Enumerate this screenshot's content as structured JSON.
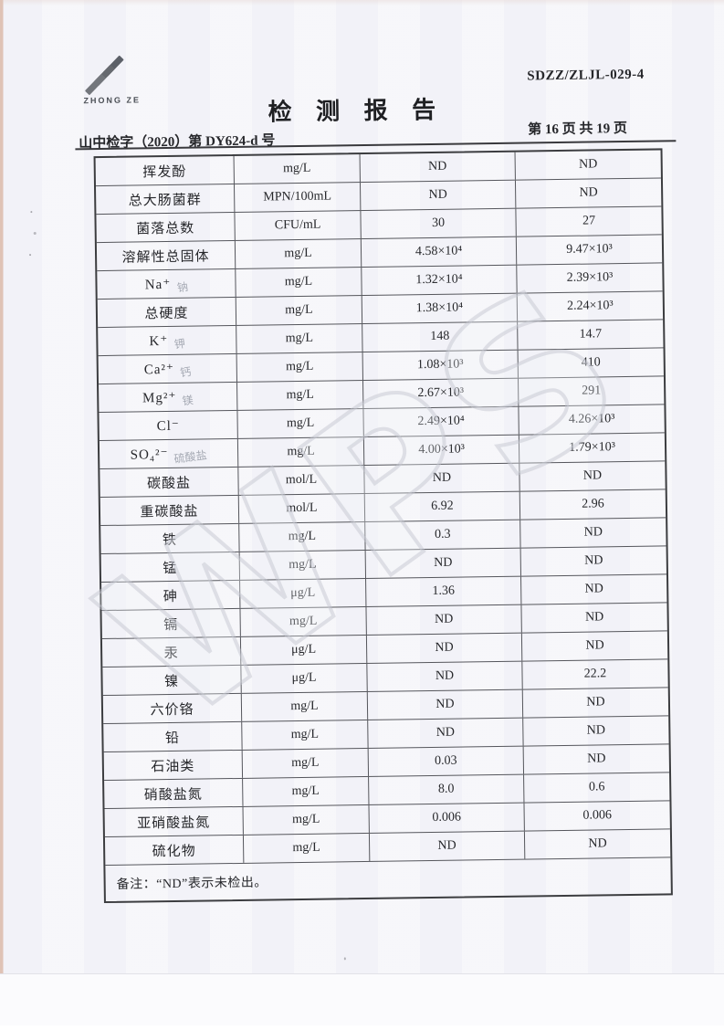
{
  "document": {
    "form_code": "SDZZ/ZLJL-029-4",
    "title": "检  测  报  告",
    "report_number": "山中检字（2020）第 DY624-d 号",
    "page_label": "第 16 页  共 19 页"
  },
  "logo": {
    "name": "ZHONG ZE",
    "icon": "three-diagonal-stripes"
  },
  "watermark": {
    "text": "WPS"
  },
  "table": {
    "rows": [
      {
        "parameter": "挥发酚",
        "unit": "mg/L",
        "value_sample1": "ND",
        "value_sample2": "ND",
        "annotation": ""
      },
      {
        "parameter": "总大肠菌群",
        "unit": "MPN/100mL",
        "value_sample1": "ND",
        "value_sample2": "ND",
        "annotation": ""
      },
      {
        "parameter": "菌落总数",
        "unit": "CFU/mL",
        "value_sample1": "30",
        "value_sample2": "27",
        "annotation": ""
      },
      {
        "parameter": "溶解性总固体",
        "unit": "mg/L",
        "value_sample1": "4.58×10⁴",
        "value_sample2": "9.47×10³",
        "annotation": ""
      },
      {
        "parameter": "Na⁺",
        "unit": "mg/L",
        "value_sample1": "1.32×10⁴",
        "value_sample2": "2.39×10³",
        "annotation": "钠"
      },
      {
        "parameter": "总硬度",
        "unit": "mg/L",
        "value_sample1": "1.38×10⁴",
        "value_sample2": "2.24×10³",
        "annotation": ""
      },
      {
        "parameter": "K⁺",
        "unit": "mg/L",
        "value_sample1": "148",
        "value_sample2": "14.7",
        "annotation": "钾"
      },
      {
        "parameter": "Ca²⁺",
        "unit": "mg/L",
        "value_sample1": "1.08×10³",
        "value_sample2": "410",
        "annotation": "钙"
      },
      {
        "parameter": "Mg²⁺",
        "unit": "mg/L",
        "value_sample1": "2.67×10³",
        "value_sample2": "291",
        "annotation": "镁"
      },
      {
        "parameter": "Cl⁻",
        "unit": "mg/L",
        "value_sample1": "2.49×10⁴",
        "value_sample2": "4.26×10³",
        "annotation": ""
      },
      {
        "parameter": "SO₄²⁻",
        "unit": "mg/L",
        "value_sample1": "4.00×10³",
        "value_sample2": "1.79×10³",
        "annotation": "硫酸盐"
      },
      {
        "parameter": "碳酸盐",
        "unit": "mol/L",
        "value_sample1": "ND",
        "value_sample2": "ND",
        "annotation": ""
      },
      {
        "parameter": "重碳酸盐",
        "unit": "mol/L",
        "value_sample1": "6.92",
        "value_sample2": "2.96",
        "annotation": ""
      },
      {
        "parameter": "铁",
        "unit": "mg/L",
        "value_sample1": "0.3",
        "value_sample2": "ND",
        "annotation": ""
      },
      {
        "parameter": "锰",
        "unit": "mg/L",
        "value_sample1": "ND",
        "value_sample2": "ND",
        "annotation": ""
      },
      {
        "parameter": "砷",
        "unit": "μg/L",
        "value_sample1": "1.36",
        "value_sample2": "ND",
        "annotation": ""
      },
      {
        "parameter": "镉",
        "unit": "mg/L",
        "value_sample1": "ND",
        "value_sample2": "ND",
        "annotation": ""
      },
      {
        "parameter": "汞",
        "unit": "μg/L",
        "value_sample1": "ND",
        "value_sample2": "ND",
        "annotation": ""
      },
      {
        "parameter": "镍",
        "unit": "μg/L",
        "value_sample1": "ND",
        "value_sample2": "22.2",
        "annotation": ""
      },
      {
        "parameter": "六价铬",
        "unit": "mg/L",
        "value_sample1": "ND",
        "value_sample2": "ND",
        "annotation": ""
      },
      {
        "parameter": "铅",
        "unit": "mg/L",
        "value_sample1": "ND",
        "value_sample2": "ND",
        "annotation": ""
      },
      {
        "parameter": "石油类",
        "unit": "mg/L",
        "value_sample1": "0.03",
        "value_sample2": "ND",
        "annotation": ""
      },
      {
        "parameter": "硝酸盐氮",
        "unit": "mg/L",
        "value_sample1": "8.0",
        "value_sample2": "0.6",
        "annotation": ""
      },
      {
        "parameter": "亚硝酸盐氮",
        "unit": "mg/L",
        "value_sample1": "0.006",
        "value_sample2": "0.006",
        "annotation": ""
      },
      {
        "parameter": "硫化物",
        "unit": "mg/L",
        "value_sample1": "ND",
        "value_sample2": "ND",
        "annotation": ""
      }
    ],
    "note": "备注：“ND”表示未检出。"
  }
}
